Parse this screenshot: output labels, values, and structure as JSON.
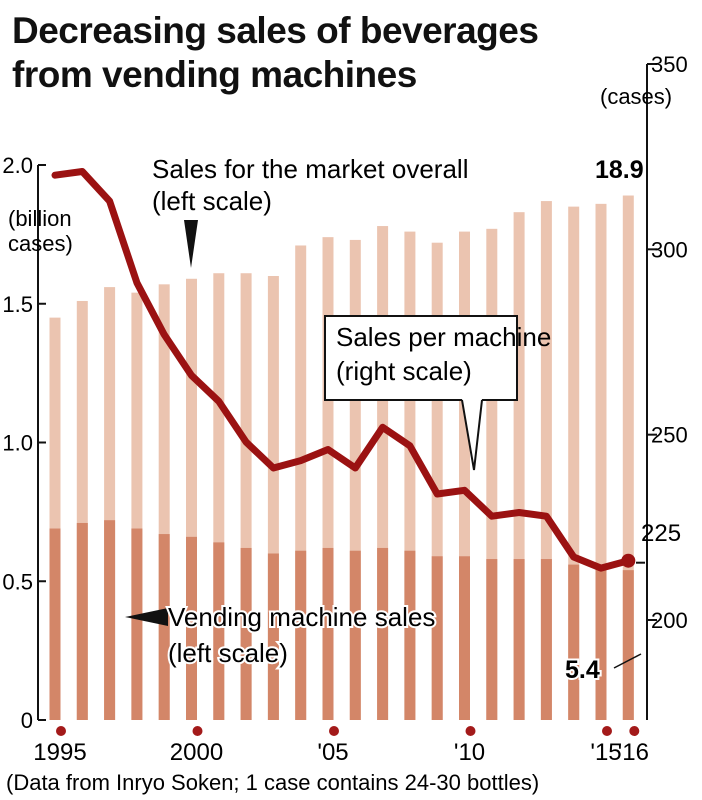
{
  "chart_data": {
    "type": "bar",
    "title": [
      "Decreasing sales of beverages",
      "from vending machines"
    ],
    "years": [
      1995,
      1996,
      1997,
      1998,
      1999,
      2000,
      2001,
      2002,
      2003,
      2004,
      2005,
      2006,
      2007,
      2008,
      2009,
      2010,
      2011,
      2012,
      2013,
      2014,
      2015,
      2016
    ],
    "x_tick_labels": [
      {
        "year": 1995,
        "label": "1995"
      },
      {
        "year": 2000,
        "label": "2000"
      },
      {
        "year": 2005,
        "label": "'05"
      },
      {
        "year": 2010,
        "label": "'10"
      },
      {
        "year": 2015,
        "label": "'15"
      },
      {
        "year": 2016,
        "label": "'16"
      }
    ],
    "left_axis": {
      "ylim": [
        0,
        2.0
      ],
      "ticks": [
        0,
        0.5,
        1.0,
        1.5,
        2.0
      ],
      "tick_labels": [
        "0",
        "0.5",
        "1.0",
        "1.5",
        "2.0"
      ],
      "unit_label": [
        "(billion",
        "cases)"
      ]
    },
    "right_axis": {
      "ylim": [
        180,
        350
      ],
      "ticks": [
        200,
        250,
        300,
        350
      ],
      "tick_labels": [
        "200",
        "250",
        "300",
        "350"
      ],
      "unit_label": "(cases)",
      "extra_label": "225"
    },
    "series": [
      {
        "name": "Sales for the market overall",
        "axis": "left",
        "kind": "bar",
        "color": "#ebc4b0",
        "values": [
          1.45,
          1.51,
          1.56,
          1.54,
          1.57,
          1.59,
          1.61,
          1.61,
          1.6,
          1.71,
          1.74,
          1.73,
          1.78,
          1.76,
          1.72,
          1.76,
          1.77,
          1.83,
          1.87,
          1.85,
          1.86,
          1.89
        ]
      },
      {
        "name": "Vending machine sales",
        "axis": "left",
        "kind": "bar",
        "color": "#d38668",
        "values": [
          0.69,
          0.71,
          0.72,
          0.69,
          0.67,
          0.66,
          0.64,
          0.62,
          0.6,
          0.61,
          0.62,
          0.61,
          0.62,
          0.61,
          0.59,
          0.59,
          0.58,
          0.58,
          0.58,
          0.56,
          0.55,
          0.54
        ]
      },
      {
        "name": "Sales per machine",
        "axis": "right",
        "kind": "line",
        "color": "#9b1212",
        "values": [
          320,
          321,
          313,
          291,
          277,
          266,
          259,
          248,
          241,
          243,
          246,
          241,
          252,
          247,
          234,
          235,
          228,
          229,
          228,
          217,
          214,
          216
        ]
      }
    ],
    "annotations": {
      "overall_label": [
        "Sales for the market overall",
        "(left scale)"
      ],
      "vending_label": [
        "Vending machine sales",
        "(left scale)"
      ],
      "per_machine_label": [
        "Sales per machine",
        "(right scale)"
      ],
      "overall_end_value": "18.9",
      "vending_end_value": "5.4"
    },
    "source_note": "(Data from Inryo Soken; 1 case contains 24-30 bottles)",
    "colors": {
      "text": "#111111",
      "marker": "#a31a1a"
    },
    "grid": false
  }
}
